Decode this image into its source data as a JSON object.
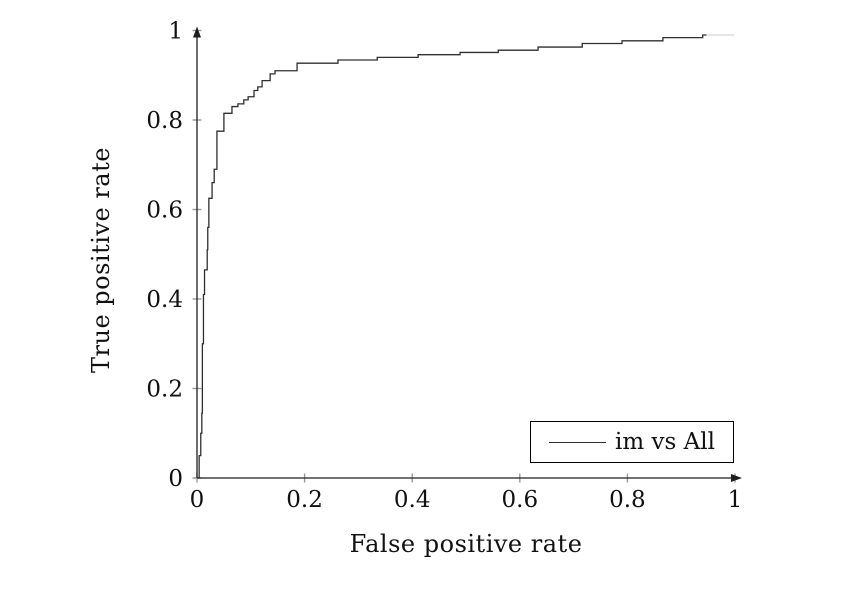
{
  "chart_data": {
    "type": "line",
    "subtype": "roc-step-curve",
    "title": "",
    "xlabel": "False positive rate",
    "ylabel": "True positive rate",
    "xlim": [
      0,
      1
    ],
    "ylim": [
      0,
      1
    ],
    "grid": false,
    "x_ticks": [
      "0",
      "0.2",
      "0.4",
      "0.6",
      "0.8",
      "1"
    ],
    "x_tick_values": [
      0,
      0.2,
      0.4,
      0.6,
      0.8,
      1
    ],
    "y_ticks": [
      "0",
      "0.2",
      "0.4",
      "0.6",
      "0.8",
      "1"
    ],
    "y_tick_values": [
      0,
      0.2,
      0.4,
      0.6,
      0.8,
      1
    ],
    "legend": {
      "position": "lower-right",
      "label": "im vs All"
    },
    "colors": {
      "line": "#2f2f2f",
      "axis": "#1f1f1f",
      "tick": "#9a9a9a",
      "faint_tail": "#d8d8d8",
      "background": "#ffffff",
      "text": "#111111"
    },
    "series": [
      {
        "name": "im vs All",
        "points": [
          [
            0.0,
            0.0
          ],
          [
            0.004,
            0.0
          ],
          [
            0.004,
            0.05
          ],
          [
            0.007,
            0.05
          ],
          [
            0.007,
            0.1
          ],
          [
            0.009,
            0.1
          ],
          [
            0.009,
            0.145
          ],
          [
            0.01,
            0.145
          ],
          [
            0.01,
            0.3
          ],
          [
            0.012,
            0.3
          ],
          [
            0.012,
            0.41
          ],
          [
            0.014,
            0.41
          ],
          [
            0.014,
            0.465
          ],
          [
            0.019,
            0.465
          ],
          [
            0.019,
            0.51
          ],
          [
            0.02,
            0.51
          ],
          [
            0.02,
            0.56
          ],
          [
            0.022,
            0.56
          ],
          [
            0.022,
            0.625
          ],
          [
            0.028,
            0.625
          ],
          [
            0.028,
            0.66
          ],
          [
            0.032,
            0.66
          ],
          [
            0.032,
            0.69
          ],
          [
            0.037,
            0.69
          ],
          [
            0.037,
            0.775
          ],
          [
            0.05,
            0.775
          ],
          [
            0.05,
            0.815
          ],
          [
            0.065,
            0.815
          ],
          [
            0.065,
            0.83
          ],
          [
            0.076,
            0.83
          ],
          [
            0.076,
            0.836
          ],
          [
            0.087,
            0.836
          ],
          [
            0.087,
            0.845
          ],
          [
            0.095,
            0.845
          ],
          [
            0.095,
            0.852
          ],
          [
            0.106,
            0.852
          ],
          [
            0.106,
            0.866
          ],
          [
            0.113,
            0.866
          ],
          [
            0.113,
            0.874
          ],
          [
            0.121,
            0.874
          ],
          [
            0.121,
            0.888
          ],
          [
            0.136,
            0.888
          ],
          [
            0.136,
            0.903
          ],
          [
            0.145,
            0.903
          ],
          [
            0.145,
            0.91
          ],
          [
            0.186,
            0.91
          ],
          [
            0.186,
            0.927
          ],
          [
            0.262,
            0.927
          ],
          [
            0.262,
            0.934
          ],
          [
            0.335,
            0.934
          ],
          [
            0.335,
            0.94
          ],
          [
            0.411,
            0.94
          ],
          [
            0.411,
            0.946
          ],
          [
            0.489,
            0.946
          ],
          [
            0.489,
            0.951
          ],
          [
            0.56,
            0.951
          ],
          [
            0.56,
            0.956
          ],
          [
            0.634,
            0.956
          ],
          [
            0.634,
            0.963
          ],
          [
            0.716,
            0.963
          ],
          [
            0.716,
            0.971
          ],
          [
            0.79,
            0.971
          ],
          [
            0.79,
            0.977
          ],
          [
            0.866,
            0.977
          ],
          [
            0.866,
            0.984
          ],
          [
            0.94,
            0.984
          ],
          [
            0.94,
            0.99
          ],
          [
            0.947,
            0.99
          ]
        ]
      }
    ],
    "faint_tail": [
      [
        0.947,
        0.99
      ],
      [
        0.998,
        0.99
      ]
    ]
  }
}
